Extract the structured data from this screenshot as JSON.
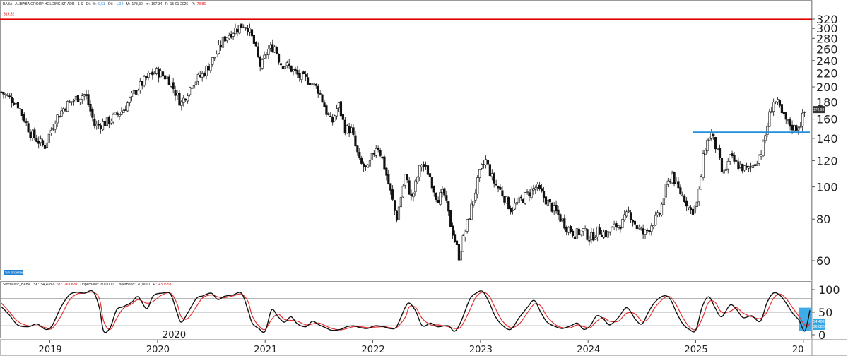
{
  "header": {
    "title": "BABA - ALIBABA GROUP HOLDING-SP ADR - 1 S",
    "dif_pct_label": "Dif. %:",
    "dif_pct": "0,61",
    "dif_label": "Dif.:",
    "dif": "1,04",
    "max_label": "M:",
    "max": "173,30",
    "min_label": "m:",
    "min": "167,34",
    "date_label": "F:",
    "date": "15-01-2026",
    "p_label": "P.:",
    "p": "73,86"
  },
  "badge": {
    "label": "Sin órdenes"
  },
  "oscillator": {
    "header": "Stochastic_BABA",
    "sk_label": "SK:",
    "sk": "54,4089",
    "sd_label": "SD:",
    "sd": "26,0820",
    "upper_label": "UpperBand:",
    "upper": "80,0000",
    "lower_label": "LowerBand:",
    "lower": "20,0000",
    "p_label": "P.:",
    "p": "43,1953",
    "value_box": "54,4089",
    "value_box2": "26,0820"
  },
  "colors": {
    "resistance_line": "#e00000",
    "support_line": "#1e8fe0",
    "sk_line": "#111111",
    "sd_line": "#e23030",
    "highlight": "#35a8e6"
  },
  "chart_data": [
    {
      "type": "candlestick",
      "scale": "log",
      "ylim": [
        53,
        340
      ],
      "y_ticks": [
        60,
        80,
        100,
        120,
        140,
        160,
        180,
        200,
        220,
        240,
        260,
        280,
        300,
        320
      ],
      "x_ticks": [
        "2019",
        "2020",
        "2021",
        "2022",
        "2023",
        "2024",
        "2025",
        "20"
      ],
      "x_tick_positions": [
        2019,
        2020,
        2021,
        2022,
        2023,
        2024,
        2025,
        2026
      ],
      "xlim": [
        2018.55,
        2026.06
      ],
      "resistance_level": 319.32,
      "resistance_label": "319,32",
      "support_level": 146,
      "support_range": [
        2025.0,
        2026.0
      ],
      "last_price_label": "170,93",
      "last_price": 170.93,
      "price_path": [
        [
          2018.55,
          193
        ],
        [
          2018.7,
          178
        ],
        [
          2018.82,
          145
        ],
        [
          2018.95,
          132
        ],
        [
          2019.05,
          160
        ],
        [
          2019.15,
          176
        ],
        [
          2019.28,
          188
        ],
        [
          2019.33,
          190
        ],
        [
          2019.42,
          152
        ],
        [
          2019.55,
          158
        ],
        [
          2019.68,
          170
        ],
        [
          2019.8,
          195
        ],
        [
          2019.93,
          218
        ],
        [
          2020.0,
          222
        ],
        [
          2020.1,
          212
        ],
        [
          2020.22,
          178
        ],
        [
          2020.32,
          205
        ],
        [
          2020.42,
          218
        ],
        [
          2020.55,
          252
        ],
        [
          2020.62,
          280
        ],
        [
          2020.72,
          298
        ],
        [
          2020.8,
          308
        ],
        [
          2020.84,
          302
        ],
        [
          2020.9,
          268
        ],
        [
          2020.96,
          228
        ],
        [
          2021.02,
          258
        ],
        [
          2021.09,
          265
        ],
        [
          2021.14,
          236
        ],
        [
          2021.22,
          230
        ],
        [
          2021.32,
          214
        ],
        [
          2021.42,
          208
        ],
        [
          2021.5,
          195
        ],
        [
          2021.57,
          168
        ],
        [
          2021.62,
          155
        ],
        [
          2021.68,
          178
        ],
        [
          2021.74,
          150
        ],
        [
          2021.8,
          148
        ],
        [
          2021.88,
          118
        ],
        [
          2021.95,
          112
        ],
        [
          2022.04,
          135
        ],
        [
          2022.1,
          118
        ],
        [
          2022.18,
          92
        ],
        [
          2022.22,
          80
        ],
        [
          2022.3,
          108
        ],
        [
          2022.36,
          92
        ],
        [
          2022.45,
          118
        ],
        [
          2022.52,
          110
        ],
        [
          2022.6,
          92
        ],
        [
          2022.66,
          96
        ],
        [
          2022.72,
          78
        ],
        [
          2022.8,
          62
        ],
        [
          2022.86,
          74
        ],
        [
          2022.92,
          88
        ],
        [
          2023.0,
          112
        ],
        [
          2023.05,
          120
        ],
        [
          2023.12,
          104
        ],
        [
          2023.2,
          96
        ],
        [
          2023.28,
          86
        ],
        [
          2023.36,
          90
        ],
        [
          2023.45,
          96
        ],
        [
          2023.52,
          100
        ],
        [
          2023.6,
          92
        ],
        [
          2023.7,
          84
        ],
        [
          2023.8,
          76
        ],
        [
          2023.88,
          72
        ],
        [
          2023.95,
          74
        ],
        [
          2024.02,
          70
        ],
        [
          2024.1,
          74
        ],
        [
          2024.18,
          72
        ],
        [
          2024.25,
          76
        ],
        [
          2024.32,
          78
        ],
        [
          2024.38,
          84
        ],
        [
          2024.45,
          76
        ],
        [
          2024.52,
          72
        ],
        [
          2024.6,
          78
        ],
        [
          2024.66,
          82
        ],
        [
          2024.72,
          98
        ],
        [
          2024.78,
          110
        ],
        [
          2024.82,
          100
        ],
        [
          2024.9,
          92
        ],
        [
          2024.96,
          84
        ],
        [
          2025.02,
          90
        ],
        [
          2025.08,
          130
        ],
        [
          2025.14,
          146
        ],
        [
          2025.2,
          128
        ],
        [
          2025.25,
          108
        ],
        [
          2025.32,
          122
        ],
        [
          2025.4,
          116
        ],
        [
          2025.48,
          112
        ],
        [
          2025.55,
          118
        ],
        [
          2025.62,
          130
        ],
        [
          2025.68,
          162
        ],
        [
          2025.72,
          182
        ],
        [
          2025.76,
          178
        ],
        [
          2025.8,
          165
        ],
        [
          2025.86,
          155
        ],
        [
          2025.92,
          150
        ],
        [
          2025.97,
          155
        ],
        [
          2026.02,
          170.93
        ]
      ]
    },
    {
      "type": "line",
      "name": "Stochastic_BABA",
      "ylim": [
        0,
        100
      ],
      "y_ticks": [
        0,
        50,
        100
      ],
      "upper_band": 80,
      "lower_band": 20,
      "xlim": [
        2018.55,
        2026.06
      ],
      "sk_path": [
        [
          2018.55,
          62
        ],
        [
          2018.62,
          45
        ],
        [
          2018.7,
          22
        ],
        [
          2018.8,
          18
        ],
        [
          2018.88,
          24
        ],
        [
          2018.96,
          12
        ],
        [
          2019.02,
          20
        ],
        [
          2019.1,
          60
        ],
        [
          2019.18,
          88
        ],
        [
          2019.25,
          94
        ],
        [
          2019.32,
          92
        ],
        [
          2019.4,
          96
        ],
        [
          2019.46,
          60
        ],
        [
          2019.5,
          8
        ],
        [
          2019.56,
          16
        ],
        [
          2019.62,
          55
        ],
        [
          2019.68,
          62
        ],
        [
          2019.76,
          72
        ],
        [
          2019.82,
          84
        ],
        [
          2019.9,
          58
        ],
        [
          2019.96,
          86
        ],
        [
          2020.04,
          92
        ],
        [
          2020.12,
          90
        ],
        [
          2020.18,
          50
        ],
        [
          2020.22,
          28
        ],
        [
          2020.28,
          48
        ],
        [
          2020.36,
          80
        ],
        [
          2020.42,
          86
        ],
        [
          2020.5,
          92
        ],
        [
          2020.56,
          78
        ],
        [
          2020.62,
          85
        ],
        [
          2020.7,
          88
        ],
        [
          2020.78,
          92
        ],
        [
          2020.84,
          55
        ],
        [
          2020.88,
          26
        ],
        [
          2020.94,
          14
        ],
        [
          2021.0,
          8
        ],
        [
          2021.06,
          55
        ],
        [
          2021.12,
          40
        ],
        [
          2021.18,
          28
        ],
        [
          2021.24,
          40
        ],
        [
          2021.3,
          24
        ],
        [
          2021.38,
          18
        ],
        [
          2021.44,
          30
        ],
        [
          2021.5,
          22
        ],
        [
          2021.56,
          16
        ],
        [
          2021.62,
          10
        ],
        [
          2021.7,
          12
        ],
        [
          2021.76,
          18
        ],
        [
          2021.82,
          20
        ],
        [
          2021.88,
          16
        ],
        [
          2021.95,
          14
        ],
        [
          2022.02,
          20
        ],
        [
          2022.1,
          18
        ],
        [
          2022.16,
          14
        ],
        [
          2022.22,
          18
        ],
        [
          2022.3,
          60
        ],
        [
          2022.34,
          70
        ],
        [
          2022.4,
          52
        ],
        [
          2022.46,
          20
        ],
        [
          2022.54,
          26
        ],
        [
          2022.6,
          18
        ],
        [
          2022.7,
          20
        ],
        [
          2022.76,
          8
        ],
        [
          2022.82,
          30
        ],
        [
          2022.9,
          78
        ],
        [
          2022.96,
          92
        ],
        [
          2023.02,
          96
        ],
        [
          2023.08,
          72
        ],
        [
          2023.14,
          40
        ],
        [
          2023.2,
          22
        ],
        [
          2023.28,
          12
        ],
        [
          2023.36,
          38
        ],
        [
          2023.44,
          62
        ],
        [
          2023.5,
          76
        ],
        [
          2023.56,
          50
        ],
        [
          2023.62,
          28
        ],
        [
          2023.7,
          18
        ],
        [
          2023.76,
          14
        ],
        [
          2023.84,
          20
        ],
        [
          2023.9,
          26
        ],
        [
          2023.96,
          12
        ],
        [
          2024.02,
          20
        ],
        [
          2024.08,
          42
        ],
        [
          2024.14,
          36
        ],
        [
          2024.2,
          22
        ],
        [
          2024.28,
          38
        ],
        [
          2024.36,
          60
        ],
        [
          2024.44,
          34
        ],
        [
          2024.5,
          24
        ],
        [
          2024.56,
          50
        ],
        [
          2024.62,
          72
        ],
        [
          2024.7,
          86
        ],
        [
          2024.76,
          80
        ],
        [
          2024.82,
          50
        ],
        [
          2024.88,
          24
        ],
        [
          2024.94,
          12
        ],
        [
          2025.0,
          10
        ],
        [
          2025.06,
          62
        ],
        [
          2025.12,
          84
        ],
        [
          2025.18,
          60
        ],
        [
          2025.24,
          40
        ],
        [
          2025.32,
          66
        ],
        [
          2025.38,
          56
        ],
        [
          2025.44,
          38
        ],
        [
          2025.52,
          42
        ],
        [
          2025.6,
          30
        ],
        [
          2025.66,
          70
        ],
        [
          2025.72,
          92
        ],
        [
          2025.78,
          88
        ],
        [
          2025.84,
          70
        ],
        [
          2025.9,
          48
        ],
        [
          2025.96,
          32
        ],
        [
          2026.01,
          8
        ],
        [
          2026.04,
          30
        ],
        [
          2026.06,
          54
        ]
      ],
      "sd_path": [
        [
          2018.55,
          70
        ],
        [
          2018.62,
          52
        ],
        [
          2018.7,
          30
        ],
        [
          2018.8,
          20
        ],
        [
          2018.88,
          20
        ],
        [
          2018.96,
          16
        ],
        [
          2019.02,
          14
        ],
        [
          2019.1,
          40
        ],
        [
          2019.18,
          76
        ],
        [
          2019.25,
          90
        ],
        [
          2019.32,
          92
        ],
        [
          2019.4,
          94
        ],
        [
          2019.46,
          80
        ],
        [
          2019.5,
          30
        ],
        [
          2019.56,
          12
        ],
        [
          2019.62,
          36
        ],
        [
          2019.68,
          58
        ],
        [
          2019.76,
          68
        ],
        [
          2019.82,
          78
        ],
        [
          2019.9,
          70
        ],
        [
          2019.96,
          74
        ],
        [
          2020.04,
          88
        ],
        [
          2020.12,
          92
        ],
        [
          2020.18,
          70
        ],
        [
          2020.22,
          40
        ],
        [
          2020.28,
          36
        ],
        [
          2020.36,
          62
        ],
        [
          2020.42,
          82
        ],
        [
          2020.5,
          88
        ],
        [
          2020.56,
          84
        ],
        [
          2020.62,
          82
        ],
        [
          2020.7,
          86
        ],
        [
          2020.78,
          90
        ],
        [
          2020.84,
          74
        ],
        [
          2020.88,
          42
        ],
        [
          2020.94,
          20
        ],
        [
          2021.0,
          12
        ],
        [
          2021.06,
          34
        ],
        [
          2021.12,
          46
        ],
        [
          2021.18,
          34
        ],
        [
          2021.24,
          32
        ],
        [
          2021.3,
          30
        ],
        [
          2021.38,
          22
        ],
        [
          2021.44,
          24
        ],
        [
          2021.5,
          26
        ],
        [
          2021.56,
          20
        ],
        [
          2021.62,
          14
        ],
        [
          2021.7,
          11
        ],
        [
          2021.76,
          14
        ],
        [
          2021.82,
          18
        ],
        [
          2021.88,
          18
        ],
        [
          2021.95,
          16
        ],
        [
          2022.02,
          17
        ],
        [
          2022.1,
          18
        ],
        [
          2022.16,
          16
        ],
        [
          2022.22,
          16
        ],
        [
          2022.3,
          38
        ],
        [
          2022.34,
          62
        ],
        [
          2022.4,
          60
        ],
        [
          2022.46,
          36
        ],
        [
          2022.54,
          22
        ],
        [
          2022.6,
          22
        ],
        [
          2022.7,
          18
        ],
        [
          2022.76,
          14
        ],
        [
          2022.82,
          18
        ],
        [
          2022.9,
          54
        ],
        [
          2022.96,
          84
        ],
        [
          2023.02,
          94
        ],
        [
          2023.08,
          86
        ],
        [
          2023.14,
          58
        ],
        [
          2023.2,
          32
        ],
        [
          2023.28,
          16
        ],
        [
          2023.36,
          24
        ],
        [
          2023.44,
          50
        ],
        [
          2023.5,
          68
        ],
        [
          2023.56,
          64
        ],
        [
          2023.62,
          40
        ],
        [
          2023.7,
          22
        ],
        [
          2023.76,
          16
        ],
        [
          2023.84,
          16
        ],
        [
          2023.9,
          22
        ],
        [
          2023.96,
          18
        ],
        [
          2024.02,
          16
        ],
        [
          2024.08,
          30
        ],
        [
          2024.14,
          38
        ],
        [
          2024.2,
          30
        ],
        [
          2024.28,
          30
        ],
        [
          2024.36,
          48
        ],
        [
          2024.44,
          46
        ],
        [
          2024.5,
          30
        ],
        [
          2024.56,
          36
        ],
        [
          2024.62,
          60
        ],
        [
          2024.7,
          80
        ],
        [
          2024.76,
          84
        ],
        [
          2024.82,
          66
        ],
        [
          2024.88,
          38
        ],
        [
          2024.94,
          18
        ],
        [
          2025.0,
          12
        ],
        [
          2025.06,
          36
        ],
        [
          2025.12,
          72
        ],
        [
          2025.18,
          72
        ],
        [
          2025.24,
          50
        ],
        [
          2025.32,
          52
        ],
        [
          2025.38,
          60
        ],
        [
          2025.44,
          48
        ],
        [
          2025.52,
          40
        ],
        [
          2025.6,
          36
        ],
        [
          2025.66,
          50
        ],
        [
          2025.72,
          80
        ],
        [
          2025.78,
          90
        ],
        [
          2025.84,
          80
        ],
        [
          2025.9,
          60
        ],
        [
          2025.96,
          40
        ],
        [
          2026.01,
          22
        ],
        [
          2026.04,
          18
        ],
        [
          2026.06,
          26
        ]
      ]
    }
  ]
}
